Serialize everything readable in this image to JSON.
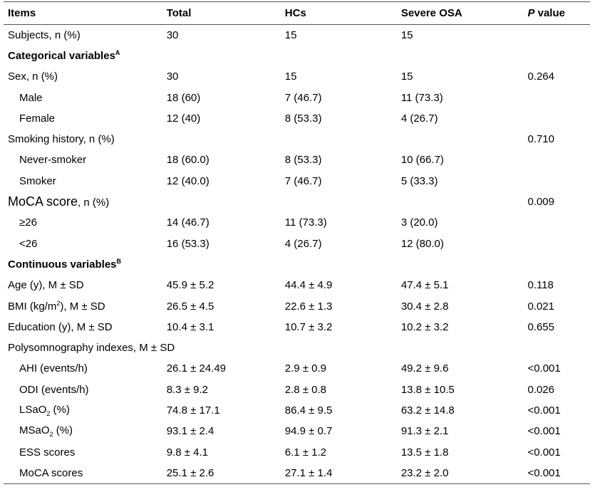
{
  "header": {
    "items": "Items",
    "total": "Total",
    "hcs": "HCs",
    "severe": "Severe OSA",
    "p_italic": "P",
    "p_rest": " value"
  },
  "rows": {
    "subjects": {
      "label": "Subjects, n (%)",
      "total": "30",
      "hcs": "15",
      "severe": "15",
      "p": ""
    },
    "categorical": {
      "label": "Categorical variables",
      "sup": "A"
    },
    "sex": {
      "label": "Sex, n (%)",
      "total": "30",
      "hcs": "15",
      "severe": "15",
      "p": "0.264"
    },
    "male": {
      "label": "Male",
      "total": "18 (60)",
      "hcs": "7 (46.7)",
      "severe": "11 (73.3)",
      "p": ""
    },
    "female": {
      "label": "Female",
      "total": "12 (40)",
      "hcs": "8 (53.3)",
      "severe": "4 (26.7)",
      "p": ""
    },
    "smoking": {
      "label": "Smoking history, n (%)",
      "total": "",
      "hcs": "",
      "severe": "",
      "p": "0.710"
    },
    "never": {
      "label": "Never-smoker",
      "total": "18 (60.0)",
      "hcs": "8 (53.3)",
      "severe": "10 (66.7)",
      "p": ""
    },
    "smoker": {
      "label": "Smoker",
      "total": "12 (40.0)",
      "hcs": "7 (46.7)",
      "severe": "5 (33.3)",
      "p": ""
    },
    "moca": {
      "label_big": "MoCA score",
      "label_rest": ", n (%)",
      "total": "",
      "hcs": "",
      "severe": "",
      "p": "0.009"
    },
    "ge26": {
      "label": "≥26",
      "total": "14 (46.7)",
      "hcs": "11 (73.3)",
      "severe": "3 (20.0)",
      "p": ""
    },
    "lt26": {
      "label": "<26",
      "total": "16 (53.3)",
      "hcs": "4 (26.7)",
      "severe": "12 (80.0)",
      "p": ""
    },
    "continuous": {
      "label": "Continuous variables",
      "sup": "B"
    },
    "age": {
      "label": "Age (y), M ± SD",
      "total": "45.9 ± 5.2",
      "hcs": "44.4 ± 4.9",
      "severe": "47.4 ± 5.1",
      "p": "0.118"
    },
    "bmi": {
      "label_pre": "BMI (kg/m",
      "label_sup": "2",
      "label_post": "), M ± SD",
      "total": "26.5 ± 4.5",
      "hcs": "22.6 ± 1.3",
      "severe": "30.4 ± 2.8",
      "p": "0.021"
    },
    "education": {
      "label": "Education (y), M ± SD",
      "total": "10.4 ± 3.1",
      "hcs": "10.7 ± 3.2",
      "severe": "10.2 ± 3.2",
      "p": "0.655"
    },
    "psg": {
      "label": "Polysomnography indexes, M ± SD",
      "total": "",
      "hcs": "",
      "severe": "",
      "p": ""
    },
    "ahi": {
      "label": "AHI (events/h)",
      "total": "26.1 ± 24.49",
      "hcs": "2.9 ± 0.9",
      "severe": "49.2 ± 9.6",
      "p": "<0.001"
    },
    "odi": {
      "label": "ODI (events/h)",
      "total": "8.3 ± 9.2",
      "hcs": "2.8 ± 0.8",
      "severe": "13.8 ± 10.5",
      "p": "0.026"
    },
    "lsao2": {
      "label_pre": "LSaO",
      "label_sub": "2",
      "label_post": " (%)",
      "total": "74.8 ± 17.1",
      "hcs": "86.4 ± 9.5",
      "severe": "63.2 ± 14.8",
      "p": "<0.001"
    },
    "msao2": {
      "label_pre": "MSaO",
      "label_sub": "2",
      "label_post": " (%)",
      "total": "93.1 ± 2.4",
      "hcs": "94.9 ± 0.7",
      "severe": "91.3 ± 2.1",
      "p": "<0.001"
    },
    "ess": {
      "label": "ESS scores",
      "total": "9.8 ± 4.1",
      "hcs": "6.1 ± 1.2",
      "severe": "13.5 ± 1.8",
      "p": "<0.001"
    },
    "mocas": {
      "label": "MoCA scores",
      "total": "25.1 ± 2.6",
      "hcs": "27.1 ± 1.4",
      "severe": "23.2 ± 2.0",
      "p": "<0.001"
    }
  }
}
